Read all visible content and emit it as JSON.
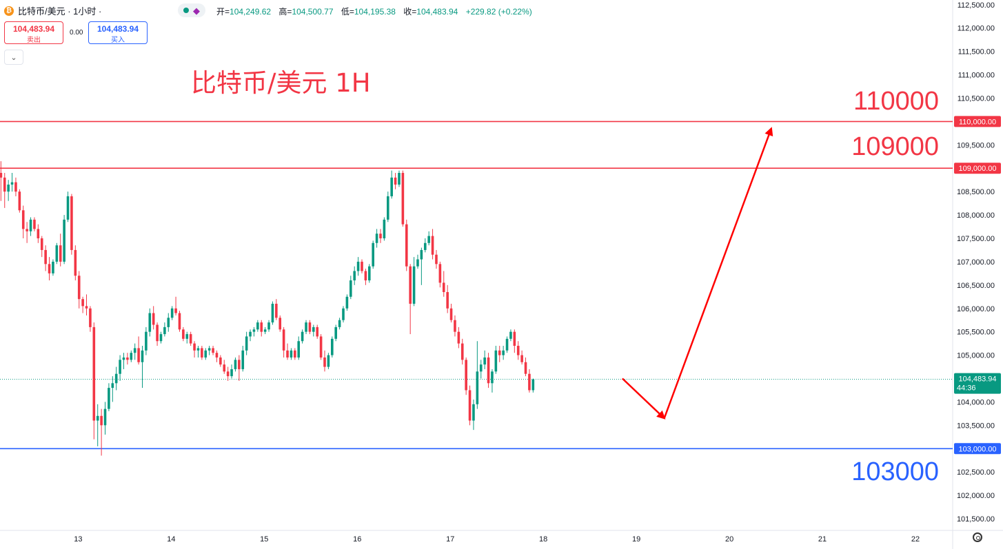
{
  "header": {
    "symbol_title": "比特币/美元 · 1小时 ·",
    "ohlc": [
      {
        "key": "开=",
        "value": "104,249.62"
      },
      {
        "key": "高=",
        "value": "104,500.77"
      },
      {
        "key": "低=",
        "value": "104,195.38"
      },
      {
        "key": "收=",
        "value": "104,483.94"
      }
    ],
    "change": "+229.82 (+0.22%)"
  },
  "trade": {
    "sell_price": "104,483.94",
    "sell_label": "卖出",
    "spread": "0.00",
    "buy_price": "104,483.94",
    "buy_label": "买入"
  },
  "colors": {
    "up": "#089981",
    "down": "#f23645",
    "resistance": "#f23645",
    "support": "#2962ff",
    "annotation_red": "#f23645",
    "annotation_blue": "#2962ff",
    "arrow": "#ff0000"
  },
  "icons": [
    "bitcoin-icon",
    "share-icon",
    "chevron-down-icon",
    "settings-icon"
  ],
  "chart_data": {
    "type": "candlestick",
    "title": "比特币/美元 1H",
    "y_axis": {
      "min": 101250,
      "max": 112600,
      "ticks": [
        101500,
        102000,
        102500,
        103000,
        103500,
        104000,
        104500,
        105000,
        105500,
        106000,
        106500,
        107000,
        107500,
        108000,
        108500,
        109000,
        109500,
        110000,
        110500,
        111000,
        111500,
        112000,
        112500
      ],
      "tick_labels": [
        "101,500.00",
        "102,000.00",
        "102,500.00",
        "103,000.00",
        "103,500.00",
        "104,000.00",
        "104,500.00",
        "105,000.00",
        "105,500.00",
        "106,000.00",
        "106,500.00",
        "107,000.00",
        "107,500.00",
        "108,000.00",
        "108,500.00",
        "109,000.00",
        "109,500.00",
        "110,000.00",
        "110,500.00",
        "111,000.00",
        "111,500.00",
        "112,000.00",
        "112,500.00"
      ]
    },
    "x_axis": {
      "tick_labels": [
        "13",
        "14",
        "15",
        "16",
        "17",
        "18",
        "19",
        "20",
        "21",
        "22"
      ],
      "tick_days": [
        13,
        14,
        15,
        16,
        17,
        18,
        19,
        20,
        21,
        22
      ],
      "day_start": 12.16,
      "day_end": 22.4
    },
    "horizontal_lines": [
      {
        "value": 110000,
        "label": "110,000.00",
        "color": "#f23645"
      },
      {
        "value": 109000,
        "label": "109,000.00",
        "color": "#f23645"
      },
      {
        "value": 103000,
        "label": "103,000.00",
        "color": "#2962ff"
      }
    ],
    "annotations": [
      {
        "text": "110000",
        "color": "#f23645"
      },
      {
        "text": "109000",
        "color": "#f23645"
      },
      {
        "text": "103000",
        "color": "#2962ff"
      }
    ],
    "current_price": {
      "value": 104483.94,
      "label": "104,483.94",
      "countdown": "44:36"
    },
    "projection_arrow": [
      {
        "day": 18.85,
        "price": 104500
      },
      {
        "day": 19.3,
        "price": 103650
      },
      {
        "day": 20.45,
        "price": 109850
      }
    ],
    "ohlc_series": [
      [
        "12.17",
        108900,
        109150,
        108300,
        108800
      ],
      [
        "12.21",
        108800,
        108900,
        108150,
        108500
      ],
      [
        "12.25",
        108500,
        108750,
        108300,
        108650
      ],
      [
        "12.29",
        108650,
        108900,
        108500,
        108700
      ],
      [
        "12.33",
        108700,
        108800,
        108400,
        108500
      ],
      [
        "12.37",
        108500,
        108550,
        108050,
        108100
      ],
      [
        "12.41",
        108100,
        108200,
        107500,
        107700
      ],
      [
        "12.45",
        107700,
        107850,
        107400,
        107650
      ],
      [
        "12.49",
        107650,
        107950,
        107550,
        107900
      ],
      [
        "12.53",
        107900,
        107950,
        107650,
        107700
      ],
      [
        "12.57",
        107700,
        107800,
        107400,
        107500
      ],
      [
        "12.61",
        107500,
        107550,
        107100,
        107250
      ],
      [
        "12.65",
        107250,
        107350,
        106800,
        106950
      ],
      [
        "12.69",
        106950,
        107100,
        106600,
        106750
      ],
      [
        "12.73",
        106750,
        107050,
        106700,
        107000
      ],
      [
        "12.77",
        107000,
        107400,
        106950,
        107350
      ],
      [
        "12.81",
        107350,
        107600,
        106900,
        107000
      ],
      [
        "12.85",
        107000,
        108000,
        106950,
        107900
      ],
      [
        "12.89",
        107900,
        108500,
        107850,
        108400
      ],
      [
        "12.93",
        108400,
        108450,
        107150,
        107250
      ],
      [
        "12.97",
        107250,
        107350,
        106600,
        106700
      ],
      [
        "13.01",
        106700,
        106800,
        106000,
        106200
      ],
      [
        "13.05",
        106200,
        106250,
        105900,
        106050
      ],
      [
        "13.09",
        106050,
        106300,
        105850,
        106000
      ],
      [
        "13.13",
        106000,
        106050,
        105500,
        105600
      ],
      [
        "13.17",
        105600,
        105700,
        103200,
        103600
      ],
      [
        "13.21",
        103600,
        103950,
        103050,
        103700
      ],
      [
        "13.25",
        103700,
        103850,
        102850,
        103500
      ],
      [
        "13.29",
        103500,
        104000,
        103300,
        103850
      ],
      [
        "13.33",
        103850,
        104400,
        103800,
        104300
      ],
      [
        "13.37",
        104300,
        104550,
        104000,
        104400
      ],
      [
        "13.41",
        104400,
        104750,
        104250,
        104600
      ],
      [
        "13.45",
        104600,
        105000,
        104450,
        104900
      ],
      [
        "13.49",
        104900,
        105050,
        104700,
        104950
      ],
      [
        "13.53",
        104950,
        105050,
        104800,
        104900
      ],
      [
        "13.57",
        104900,
        105100,
        104850,
        105050
      ],
      [
        "13.61",
        105050,
        105250,
        104900,
        105150
      ],
      [
        "13.65",
        105150,
        105400,
        104800,
        104850
      ],
      [
        "13.69",
        104850,
        105200,
        104300,
        105100
      ],
      [
        "13.73",
        105100,
        105600,
        105000,
        105500
      ],
      [
        "13.77",
        105500,
        106000,
        105400,
        105900
      ],
      [
        "13.81",
        105900,
        106050,
        105550,
        105650
      ],
      [
        "13.85",
        105650,
        105700,
        105200,
        105300
      ],
      [
        "13.89",
        105300,
        105500,
        105250,
        105450
      ],
      [
        "13.93",
        105450,
        105700,
        105400,
        105600
      ],
      [
        "13.97",
        105600,
        105900,
        105500,
        105800
      ],
      [
        "14.01",
        105800,
        106050,
        105750,
        106000
      ],
      [
        "14.05",
        106000,
        106250,
        105850,
        105900
      ],
      [
        "14.09",
        105900,
        105950,
        105500,
        105550
      ],
      [
        "14.13",
        105550,
        105600,
        105300,
        105350
      ],
      [
        "14.17",
        105350,
        105500,
        105250,
        105450
      ],
      [
        "14.21",
        105450,
        105500,
        105200,
        105250
      ],
      [
        "14.25",
        105250,
        105300,
        104950,
        105100
      ],
      [
        "14.29",
        105100,
        105200,
        104950,
        105150
      ],
      [
        "14.33",
        105150,
        105200,
        104900,
        104950
      ],
      [
        "14.37",
        104950,
        105150,
        104900,
        105100
      ],
      [
        "14.41",
        105100,
        105200,
        105000,
        105150
      ],
      [
        "14.45",
        105150,
        105200,
        105000,
        105050
      ],
      [
        "14.49",
        105050,
        105100,
        104850,
        104950
      ],
      [
        "14.53",
        104950,
        105000,
        104750,
        104800
      ],
      [
        "14.57",
        104800,
        104900,
        104600,
        104650
      ],
      [
        "14.61",
        104650,
        104750,
        104450,
        104550
      ],
      [
        "14.65",
        104550,
        104800,
        104500,
        104700
      ],
      [
        "14.69",
        104700,
        104950,
        104650,
        104900
      ],
      [
        "14.73",
        104900,
        105000,
        104450,
        104700
      ],
      [
        "14.77",
        104700,
        105200,
        104650,
        105100
      ],
      [
        "14.81",
        105100,
        105500,
        105000,
        105400
      ],
      [
        "14.85",
        105400,
        105550,
        105300,
        105500
      ],
      [
        "14.89",
        105500,
        105600,
        105400,
        105550
      ],
      [
        "14.93",
        105550,
        105750,
        105500,
        105700
      ],
      [
        "14.97",
        105700,
        105750,
        105400,
        105500
      ],
      [
        "15.01",
        105500,
        105600,
        105450,
        105550
      ],
      [
        "15.05",
        105550,
        105750,
        105500,
        105700
      ],
      [
        "15.09",
        105700,
        106150,
        105650,
        106100
      ],
      [
        "15.13",
        106100,
        106200,
        105750,
        105800
      ],
      [
        "15.17",
        105800,
        105850,
        105500,
        105550
      ],
      [
        "15.21",
        105550,
        105600,
        104950,
        105100
      ],
      [
        "15.25",
        105100,
        105250,
        104900,
        104950
      ],
      [
        "15.29",
        104950,
        105150,
        104900,
        105100
      ],
      [
        "15.33",
        105100,
        105150,
        104900,
        104950
      ],
      [
        "15.37",
        104950,
        105400,
        104900,
        105300
      ],
      [
        "15.41",
        105300,
        105550,
        105250,
        105500
      ],
      [
        "15.45",
        105500,
        105750,
        105450,
        105700
      ],
      [
        "15.49",
        105700,
        105750,
        105450,
        105500
      ],
      [
        "15.53",
        105500,
        105650,
        105400,
        105600
      ],
      [
        "15.57",
        105600,
        105650,
        105350,
        105400
      ],
      [
        "15.61",
        105400,
        105450,
        104900,
        104950
      ],
      [
        "15.65",
        104950,
        105100,
        104650,
        104750
      ],
      [
        "15.69",
        104750,
        105050,
        104700,
        105000
      ],
      [
        "15.73",
        105000,
        105400,
        104950,
        105350
      ],
      [
        "15.77",
        105350,
        105650,
        105300,
        105600
      ],
      [
        "15.81",
        105600,
        105800,
        105550,
        105750
      ],
      [
        "15.85",
        105750,
        106050,
        105700,
        106000
      ],
      [
        "15.89",
        106000,
        106300,
        105950,
        106250
      ],
      [
        "15.93",
        106250,
        106700,
        106200,
        106600
      ],
      [
        "15.97",
        106600,
        106900,
        106500,
        106800
      ],
      [
        "16.01",
        106800,
        107100,
        106700,
        107000
      ],
      [
        "16.05",
        107000,
        107050,
        106750,
        106800
      ],
      [
        "16.09",
        106800,
        106850,
        106500,
        106600
      ],
      [
        "16.13",
        106600,
        106950,
        106550,
        106900
      ],
      [
        "16.17",
        106900,
        107450,
        106850,
        107400
      ],
      [
        "16.21",
        107400,
        107700,
        107300,
        107600
      ],
      [
        "16.25",
        107600,
        107700,
        107400,
        107500
      ],
      [
        "16.29",
        107500,
        107950,
        107450,
        107900
      ],
      [
        "16.33",
        107900,
        108500,
        107850,
        108400
      ],
      [
        "16.37",
        108400,
        108950,
        108350,
        108800
      ],
      [
        "16.41",
        108800,
        108900,
        108550,
        108650
      ],
      [
        "16.45",
        108650,
        108950,
        108600,
        108900
      ],
      [
        "16.49",
        108900,
        108950,
        107750,
        107800
      ],
      [
        "16.53",
        107800,
        107900,
        106800,
        106900
      ],
      [
        "16.57",
        106900,
        106950,
        105450,
        106100
      ],
      [
        "16.61",
        106100,
        107100,
        106050,
        106900
      ],
      [
        "16.65",
        106900,
        107150,
        106850,
        107050
      ],
      [
        "16.69",
        107050,
        107300,
        106500,
        107250
      ],
      [
        "16.73",
        107250,
        107500,
        107200,
        107400
      ],
      [
        "16.77",
        107400,
        107650,
        107350,
        107550
      ],
      [
        "16.81",
        107550,
        107700,
        107050,
        107150
      ],
      [
        "16.85",
        107150,
        107250,
        106850,
        106950
      ],
      [
        "16.89",
        106950,
        107000,
        106450,
        106550
      ],
      [
        "16.93",
        106550,
        106800,
        106250,
        106350
      ],
      [
        "16.97",
        106350,
        106500,
        105900,
        106000
      ],
      [
        "17.01",
        106000,
        106100,
        105700,
        105750
      ],
      [
        "17.05",
        105750,
        105850,
        105400,
        105500
      ],
      [
        "17.09",
        105500,
        105600,
        105150,
        105250
      ],
      [
        "17.13",
        105250,
        105350,
        104800,
        104900
      ],
      [
        "17.17",
        104900,
        104950,
        104150,
        104250
      ],
      [
        "17.21",
        104250,
        104350,
        103500,
        103600
      ],
      [
        "17.25",
        103600,
        104050,
        103400,
        103950
      ],
      [
        "17.29",
        103950,
        105300,
        103850,
        104650
      ],
      [
        "17.33",
        104650,
        104900,
        104500,
        104800
      ],
      [
        "17.37",
        104800,
        105100,
        104700,
        104950
      ],
      [
        "17.41",
        104950,
        105050,
        104300,
        104400
      ],
      [
        "17.45",
        104400,
        104700,
        104200,
        104650
      ],
      [
        "17.49",
        104650,
        105200,
        104600,
        105100
      ],
      [
        "17.53",
        105100,
        105200,
        104850,
        105000
      ],
      [
        "17.57",
        105000,
        105200,
        104900,
        105100
      ],
      [
        "17.61",
        105100,
        105400,
        105050,
        105350
      ],
      [
        "17.65",
        105350,
        105550,
        105300,
        105500
      ],
      [
        "17.69",
        105500,
        105550,
        105050,
        105200
      ],
      [
        "17.73",
        105200,
        105300,
        104900,
        105000
      ],
      [
        "17.77",
        105000,
        105100,
        104800,
        104850
      ],
      [
        "17.81",
        104850,
        104950,
        104550,
        104600
      ],
      [
        "17.85",
        104600,
        104700,
        104200,
        104250
      ],
      [
        "17.89",
        104250,
        104500,
        104200,
        104480
      ]
    ]
  }
}
